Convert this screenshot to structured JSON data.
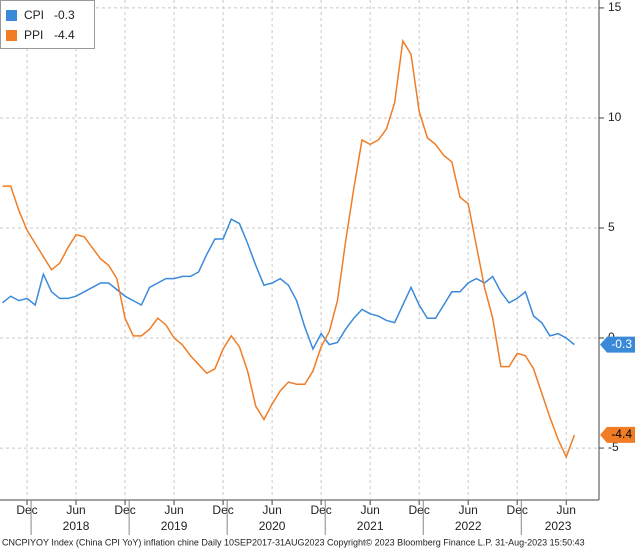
{
  "chart_data": {
    "type": "line",
    "x": [
      "2017-09",
      "2017-10",
      "2017-11",
      "2017-12",
      "2018-01",
      "2018-02",
      "2018-03",
      "2018-04",
      "2018-05",
      "2018-06",
      "2018-07",
      "2018-08",
      "2018-09",
      "2018-10",
      "2018-11",
      "2018-12",
      "2019-01",
      "2019-02",
      "2019-03",
      "2019-04",
      "2019-05",
      "2019-06",
      "2019-07",
      "2019-08",
      "2019-09",
      "2019-10",
      "2019-11",
      "2019-12",
      "2020-01",
      "2020-02",
      "2020-03",
      "2020-04",
      "2020-05",
      "2020-06",
      "2020-07",
      "2020-08",
      "2020-09",
      "2020-10",
      "2020-11",
      "2020-12",
      "2021-01",
      "2021-02",
      "2021-03",
      "2021-04",
      "2021-05",
      "2021-06",
      "2021-07",
      "2021-08",
      "2021-09",
      "2021-10",
      "2021-11",
      "2021-12",
      "2022-01",
      "2022-02",
      "2022-03",
      "2022-04",
      "2022-05",
      "2022-06",
      "2022-07",
      "2022-08",
      "2022-09",
      "2022-10",
      "2022-11",
      "2022-12",
      "2023-01",
      "2023-02",
      "2023-03",
      "2023-04",
      "2023-05",
      "2023-06",
      "2023-07"
    ],
    "series": [
      {
        "name": "CPI",
        "color": "#3b8ad9",
        "values": [
          1.6,
          1.9,
          1.7,
          1.8,
          1.5,
          2.9,
          2.1,
          1.8,
          1.8,
          1.9,
          2.1,
          2.3,
          2.5,
          2.5,
          2.2,
          1.9,
          1.7,
          1.5,
          2.3,
          2.5,
          2.7,
          2.7,
          2.8,
          2.8,
          3.0,
          3.8,
          4.5,
          4.5,
          5.4,
          5.2,
          4.3,
          3.3,
          2.4,
          2.5,
          2.7,
          2.4,
          1.7,
          0.5,
          -0.5,
          0.2,
          -0.3,
          -0.2,
          0.4,
          0.9,
          1.3,
          1.1,
          1.0,
          0.8,
          0.7,
          1.5,
          2.3,
          1.5,
          0.9,
          0.9,
          1.5,
          2.1,
          2.1,
          2.5,
          2.7,
          2.5,
          2.8,
          2.1,
          1.6,
          1.8,
          2.1,
          1.0,
          0.7,
          0.1,
          0.2,
          0.0,
          -0.3
        ]
      },
      {
        "name": "PPI",
        "color": "#f07d26",
        "values": [
          6.9,
          6.9,
          5.8,
          4.9,
          4.3,
          3.7,
          3.1,
          3.4,
          4.1,
          4.7,
          4.6,
          4.1,
          3.6,
          3.3,
          2.7,
          0.9,
          0.1,
          0.1,
          0.4,
          0.9,
          0.6,
          0.0,
          -0.3,
          -0.8,
          -1.2,
          -1.6,
          -1.4,
          -0.5,
          0.1,
          -0.4,
          -1.5,
          -3.1,
          -3.7,
          -3.0,
          -2.4,
          -2.0,
          -2.1,
          -2.1,
          -1.5,
          -0.4,
          0.3,
          1.7,
          4.4,
          6.8,
          9.0,
          8.8,
          9.0,
          9.5,
          10.7,
          13.5,
          12.9,
          10.3,
          9.1,
          8.8,
          8.3,
          8.0,
          6.4,
          6.1,
          4.2,
          2.3,
          0.9,
          -1.3,
          -1.3,
          -0.7,
          -0.8,
          -1.4,
          -2.5,
          -3.6,
          -4.6,
          -5.4,
          -4.4
        ]
      }
    ],
    "ylim": [
      -7.36,
      15.36
    ],
    "yticks": [
      -5,
      0,
      5,
      10,
      15
    ],
    "xticks": [
      {
        "value": "2017-12",
        "label": "Dec"
      },
      {
        "value": "2018-06",
        "label": "Jun"
      },
      {
        "value": "2018-12",
        "label": "Dec"
      },
      {
        "value": "2019-06",
        "label": "Jun"
      },
      {
        "value": "2019-12",
        "label": "Dec"
      },
      {
        "value": "2020-06",
        "label": "Jun"
      },
      {
        "value": "2020-12",
        "label": "Dec"
      },
      {
        "value": "2021-06",
        "label": "Jun"
      },
      {
        "value": "2021-12",
        "label": "Dec"
      },
      {
        "value": "2022-06",
        "label": "Jun"
      },
      {
        "value": "2022-12",
        "label": "Dec"
      },
      {
        "value": "2023-06",
        "label": "Jun"
      }
    ],
    "year_labels": [
      {
        "value": "2018-06",
        "label": "2018"
      },
      {
        "value": "2019-06",
        "label": "2019"
      },
      {
        "value": "2020-06",
        "label": "2020"
      },
      {
        "value": "2021-06",
        "label": "2021"
      },
      {
        "value": "2022-06",
        "label": "2022"
      },
      {
        "value": "2023-05",
        "label": "2023"
      }
    ],
    "grid": true,
    "legend": "top-left",
    "footer": "CNCPIYOY Index (China CPI YoY) inflation chine  Daily 10SEP2017-31AUG2023   Copyright© 2023 Bloomberg Finance L.P.   31-Aug-2023 15:50:43"
  }
}
